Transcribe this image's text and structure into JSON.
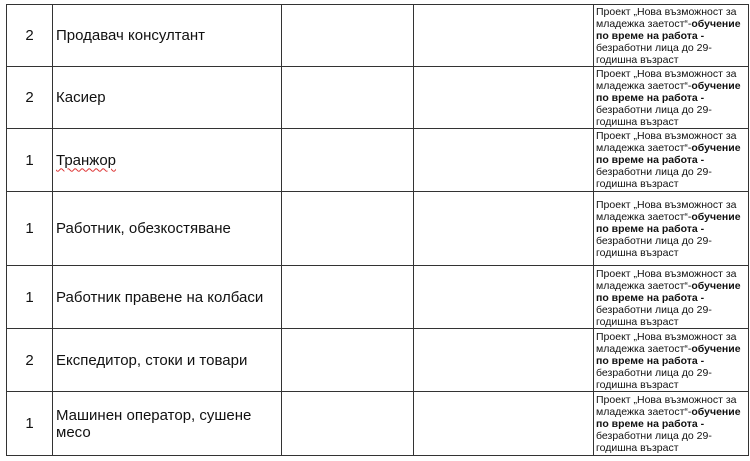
{
  "note": {
    "part1": "Проект „Нова възможност за младежка заетост“-",
    "bold": "обучение по време на работа -",
    "part2": "безработни лица до 29-годишна възраст"
  },
  "rows": [
    {
      "count": "2",
      "position": "Продавач консултант"
    },
    {
      "count": "2",
      "position": "Касиер"
    },
    {
      "count": "1",
      "position": "Транжор"
    },
    {
      "count": "1",
      "position": "Работник, обезкостяване"
    },
    {
      "count": "1",
      "position": "Работник правене на колбаси"
    },
    {
      "count": "2",
      "position": "Експедитор, стоки и товари"
    },
    {
      "count": "1",
      "position": "Машинен оператор, сушене месо"
    }
  ]
}
